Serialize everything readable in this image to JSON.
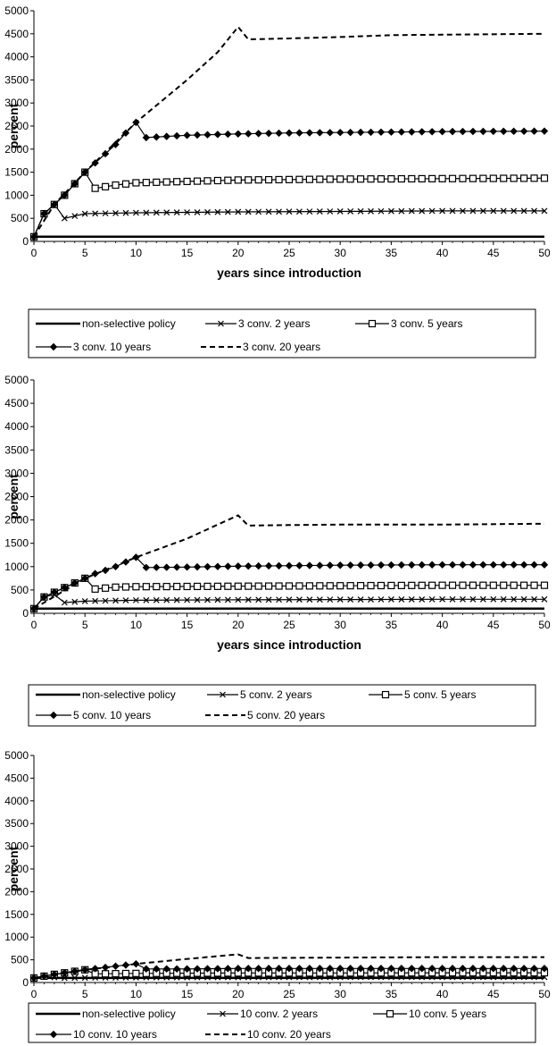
{
  "chart_data": [
    {
      "type": "line",
      "xlabel": "years since introduction",
      "ylabel": "percent",
      "xlim": [
        0,
        50
      ],
      "ylim": [
        0,
        5000
      ],
      "xticks": [
        "0",
        "5",
        "10",
        "15",
        "20",
        "25",
        "30",
        "35",
        "40",
        "45",
        "50"
      ],
      "yticks": [
        "0",
        "500",
        "1000",
        "1500",
        "2000",
        "2500",
        "3000",
        "3500",
        "4000",
        "4500",
        "5000"
      ],
      "grid": false,
      "legend_position": "bottom",
      "series": [
        {
          "name": "non-selective policy",
          "style": "solid-thick",
          "color": "#000000",
          "points": [
            [
              0,
              100
            ],
            [
              50,
              100
            ]
          ]
        },
        {
          "name": "3 conv. 2 years",
          "style": "x-marker",
          "color": "#000000",
          "points": [
            [
              0,
              100
            ],
            [
              1,
              600
            ],
            [
              2,
              800
            ],
            [
              3,
              500
            ],
            [
              5,
              600
            ],
            [
              10,
              620
            ],
            [
              20,
              640
            ],
            [
              30,
              650
            ],
            [
              40,
              660
            ],
            [
              50,
              660
            ]
          ]
        },
        {
          "name": "3 conv. 5 years",
          "style": "square-marker",
          "color": "#000000",
          "points": [
            [
              0,
              100
            ],
            [
              1,
              600
            ],
            [
              2,
              800
            ],
            [
              3,
              1000
            ],
            [
              4,
              1250
            ],
            [
              5,
              1500
            ],
            [
              6,
              1150
            ],
            [
              8,
              1220
            ],
            [
              10,
              1270
            ],
            [
              15,
              1300
            ],
            [
              20,
              1330
            ],
            [
              30,
              1350
            ],
            [
              40,
              1360
            ],
            [
              50,
              1370
            ]
          ]
        },
        {
          "name": "3 conv. 10 years",
          "style": "diamond-marker",
          "color": "#000000",
          "points": [
            [
              0,
              100
            ],
            [
              1,
              600
            ],
            [
              2,
              800
            ],
            [
              3,
              1000
            ],
            [
              4,
              1250
            ],
            [
              5,
              1500
            ],
            [
              6,
              1700
            ],
            [
              7,
              1900
            ],
            [
              8,
              2100
            ],
            [
              9,
              2350
            ],
            [
              10,
              2580
            ],
            [
              11,
              2250
            ],
            [
              15,
              2300
            ],
            [
              20,
              2330
            ],
            [
              25,
              2350
            ],
            [
              30,
              2360
            ],
            [
              40,
              2380
            ],
            [
              50,
              2390
            ]
          ]
        },
        {
          "name": "3 conv. 20 years",
          "style": "dashed",
          "color": "#000000",
          "points": [
            [
              0,
              100
            ],
            [
              2,
              800
            ],
            [
              5,
              1500
            ],
            [
              10,
              2580
            ],
            [
              15,
              3500
            ],
            [
              18,
              4100
            ],
            [
              20,
              4650
            ],
            [
              21,
              4380
            ],
            [
              25,
              4400
            ],
            [
              30,
              4430
            ],
            [
              35,
              4470
            ],
            [
              40,
              4480
            ],
            [
              50,
              4500
            ]
          ]
        }
      ]
    },
    {
      "type": "line",
      "xlabel": "years since introduction",
      "ylabel": "percent",
      "xlim": [
        0,
        50
      ],
      "ylim": [
        0,
        5000
      ],
      "xticks": [
        "0",
        "5",
        "10",
        "15",
        "20",
        "25",
        "30",
        "35",
        "40",
        "45",
        "50"
      ],
      "yticks": [
        "0",
        "500",
        "1000",
        "1500",
        "2000",
        "2500",
        "3000",
        "3500",
        "4000",
        "4500",
        "5000"
      ],
      "grid": false,
      "legend_position": "bottom",
      "series": [
        {
          "name": "non-selective policy",
          "style": "solid-thick",
          "color": "#000000",
          "points": [
            [
              0,
              100
            ],
            [
              50,
              100
            ]
          ]
        },
        {
          "name": "5 conv. 2 years",
          "style": "x-marker",
          "color": "#000000",
          "points": [
            [
              0,
              100
            ],
            [
              1,
              350
            ],
            [
              2,
              400
            ],
            [
              3,
              230
            ],
            [
              5,
              260
            ],
            [
              10,
              280
            ],
            [
              20,
              290
            ],
            [
              30,
              295
            ],
            [
              40,
              300
            ],
            [
              50,
              300
            ]
          ]
        },
        {
          "name": "5 conv. 5 years",
          "style": "square-marker",
          "color": "#000000",
          "points": [
            [
              0,
              100
            ],
            [
              1,
              350
            ],
            [
              2,
              450
            ],
            [
              3,
              550
            ],
            [
              4,
              650
            ],
            [
              5,
              750
            ],
            [
              6,
              520
            ],
            [
              8,
              560
            ],
            [
              10,
              570
            ],
            [
              20,
              580
            ],
            [
              30,
              590
            ],
            [
              40,
              600
            ],
            [
              50,
              600
            ]
          ]
        },
        {
          "name": "5 conv. 10 years",
          "style": "diamond-marker",
          "color": "#000000",
          "points": [
            [
              0,
              100
            ],
            [
              1,
              350
            ],
            [
              2,
              450
            ],
            [
              3,
              550
            ],
            [
              4,
              650
            ],
            [
              5,
              750
            ],
            [
              6,
              850
            ],
            [
              7,
              920
            ],
            [
              8,
              1000
            ],
            [
              9,
              1100
            ],
            [
              10,
              1200
            ],
            [
              11,
              980
            ],
            [
              15,
              990
            ],
            [
              20,
              1010
            ],
            [
              30,
              1030
            ],
            [
              40,
              1040
            ],
            [
              50,
              1040
            ]
          ]
        },
        {
          "name": "5 conv. 20 years",
          "style": "dashed",
          "color": "#000000",
          "points": [
            [
              0,
              100
            ],
            [
              5,
              750
            ],
            [
              10,
              1200
            ],
            [
              15,
              1600
            ],
            [
              18,
              1900
            ],
            [
              20,
              2100
            ],
            [
              21,
              1880
            ],
            [
              25,
              1890
            ],
            [
              30,
              1900
            ],
            [
              40,
              1900
            ],
            [
              50,
              1920
            ]
          ]
        }
      ]
    },
    {
      "type": "line",
      "xlabel": "years since introduction",
      "ylabel": "percent",
      "xlim": [
        0,
        50
      ],
      "ylim": [
        0,
        5000
      ],
      "xticks": [
        "0",
        "5",
        "10",
        "15",
        "20",
        "25",
        "30",
        "35",
        "40",
        "45",
        "50"
      ],
      "yticks": [
        "0",
        "500",
        "1000",
        "1500",
        "2000",
        "2500",
        "3000",
        "3500",
        "4000",
        "4500",
        "5000"
      ],
      "grid": false,
      "legend_position": "bottom",
      "series": [
        {
          "name": "non-selective policy",
          "style": "solid-thick",
          "color": "#000000",
          "points": [
            [
              0,
              100
            ],
            [
              50,
              100
            ]
          ]
        },
        {
          "name": "10 conv. 2 years",
          "style": "x-marker",
          "color": "#000000",
          "points": [
            [
              0,
              100
            ],
            [
              1,
              130
            ],
            [
              3,
              100
            ],
            [
              5,
              105
            ],
            [
              10,
              110
            ],
            [
              20,
              115
            ],
            [
              30,
              118
            ],
            [
              40,
              120
            ],
            [
              50,
              120
            ]
          ]
        },
        {
          "name": "10 conv. 5 years",
          "style": "square-marker",
          "color": "#000000",
          "points": [
            [
              0,
              100
            ],
            [
              2,
              180
            ],
            [
              5,
              280
            ],
            [
              6,
              190
            ],
            [
              10,
              200
            ],
            [
              20,
              210
            ],
            [
              30,
              210
            ],
            [
              40,
              215
            ],
            [
              50,
              215
            ]
          ]
        },
        {
          "name": "10 conv. 10 years",
          "style": "diamond-marker",
          "color": "#000000",
          "points": [
            [
              0,
              100
            ],
            [
              2,
              180
            ],
            [
              5,
              280
            ],
            [
              8,
              360
            ],
            [
              10,
              410
            ],
            [
              11,
              300
            ],
            [
              15,
              300
            ],
            [
              20,
              310
            ],
            [
              30,
              310
            ],
            [
              40,
              310
            ],
            [
              50,
              310
            ]
          ]
        },
        {
          "name": "10 conv. 20 years",
          "style": "dashed",
          "color": "#000000",
          "points": [
            [
              0,
              100
            ],
            [
              5,
              280
            ],
            [
              10,
              410
            ],
            [
              15,
              520
            ],
            [
              20,
              620
            ],
            [
              21,
              540
            ],
            [
              30,
              550
            ],
            [
              40,
              560
            ],
            [
              50,
              560
            ]
          ]
        }
      ]
    }
  ]
}
